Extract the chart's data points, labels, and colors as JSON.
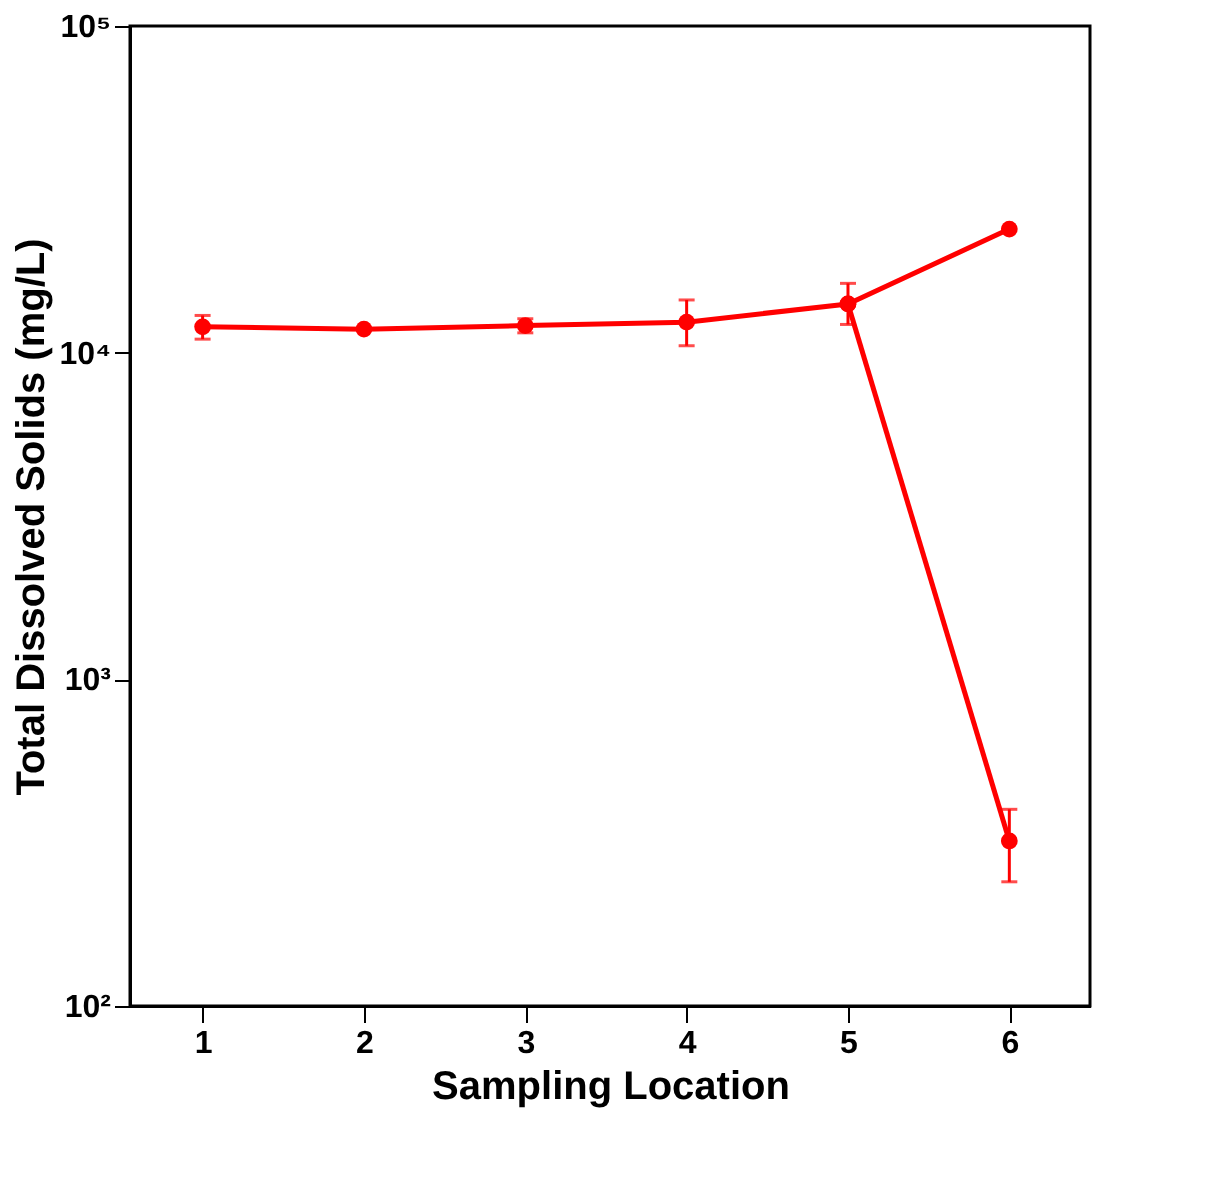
{
  "chart_data": {
    "type": "line",
    "xlabel": "Sampling Location",
    "ylabel": "Total Dissolved Solids (mg/L)",
    "log": "y",
    "grid": false,
    "marker": "circle",
    "line_style": "solid",
    "xlim": [
      0.55,
      6.5
    ],
    "xticks": [
      1,
      2,
      3,
      4,
      5,
      6
    ],
    "ylim": [
      100,
      100000
    ],
    "yticks": [
      {
        "value": 100,
        "label": "10²"
      },
      {
        "value": 1000,
        "label": "10³"
      },
      {
        "value": 10000,
        "label": "10⁴"
      },
      {
        "value": 100000,
        "label": "10⁵"
      }
    ],
    "series": [
      {
        "color": "#ff0000",
        "x": [
          1,
          2,
          3,
          4,
          5,
          6
        ],
        "values": [
          12000,
          11800,
          12100,
          12400,
          14100,
          23900
        ],
        "errors": [
          [
            11000,
            13000
          ],
          null,
          [
            11500,
            12700
          ],
          [
            10500,
            14500
          ],
          [
            12200,
            16300
          ],
          null
        ]
      },
      {
        "color": "#ff0000",
        "x": [
          5,
          6
        ],
        "values": [
          14100,
          320
        ],
        "errors": [
          null,
          [
            240,
            400
          ]
        ]
      }
    ]
  }
}
